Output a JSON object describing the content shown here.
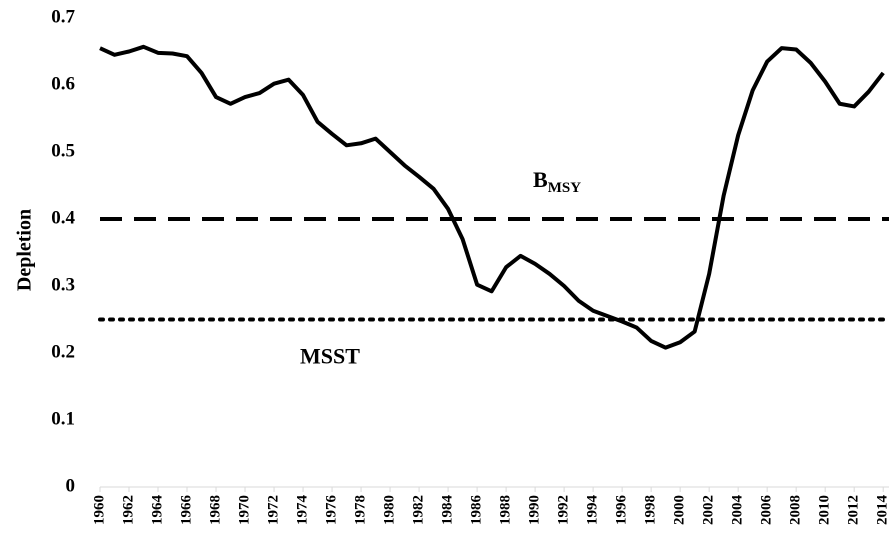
{
  "chart_data": {
    "type": "line",
    "y_label": "Depletion",
    "x": [
      1960,
      1961,
      1962,
      1963,
      1964,
      1965,
      1966,
      1967,
      1968,
      1969,
      1970,
      1971,
      1972,
      1973,
      1974,
      1975,
      1976,
      1977,
      1978,
      1979,
      1980,
      1981,
      1982,
      1983,
      1984,
      1985,
      1986,
      1987,
      1988,
      1989,
      1990,
      1991,
      1992,
      1993,
      1994,
      1995,
      1996,
      1997,
      1998,
      1999,
      2000,
      2001,
      2002,
      2003,
      2004,
      2005,
      2006,
      2007,
      2008,
      2009,
      2010,
      2011,
      2012,
      2013,
      2014
    ],
    "series": [
      {
        "color": "#000000",
        "values": [
          0.655,
          0.645,
          0.65,
          0.657,
          0.648,
          0.647,
          0.643,
          0.618,
          0.582,
          0.572,
          0.582,
          0.588,
          0.602,
          0.608,
          0.585,
          0.545,
          0.527,
          0.51,
          0.513,
          0.52,
          0.5,
          0.48,
          0.463,
          0.445,
          0.415,
          0.37,
          0.302,
          0.292,
          0.328,
          0.345,
          0.333,
          0.318,
          0.3,
          0.278,
          0.263,
          0.255,
          0.247,
          0.238,
          0.218,
          0.208,
          0.216,
          0.232,
          0.318,
          0.435,
          0.525,
          0.592,
          0.635,
          0.655,
          0.653,
          0.633,
          0.605,
          0.572,
          0.568,
          0.59,
          0.618
        ]
      }
    ],
    "reference_lines": [
      {
        "value": 0.4,
        "label": "B",
        "label_sub": "MSY",
        "style": "dashed"
      },
      {
        "value": 0.25,
        "label": "MSST",
        "style": "dotted"
      }
    ],
    "xlim": [
      1960,
      2014.4
    ],
    "xticks": [
      1960,
      1962,
      1964,
      1966,
      1968,
      1970,
      1972,
      1974,
      1976,
      1978,
      1980,
      1982,
      1984,
      1986,
      1988,
      1990,
      1992,
      1994,
      1996,
      1998,
      2000,
      2002,
      2004,
      2006,
      2008,
      2010,
      2012,
      2014
    ],
    "ylim": [
      0,
      0.7
    ],
    "yticks": [
      {
        "value": 0,
        "label": "0"
      },
      0.1,
      0.2,
      0.3,
      0.4,
      0.5,
      0.6,
      0.7
    ]
  }
}
